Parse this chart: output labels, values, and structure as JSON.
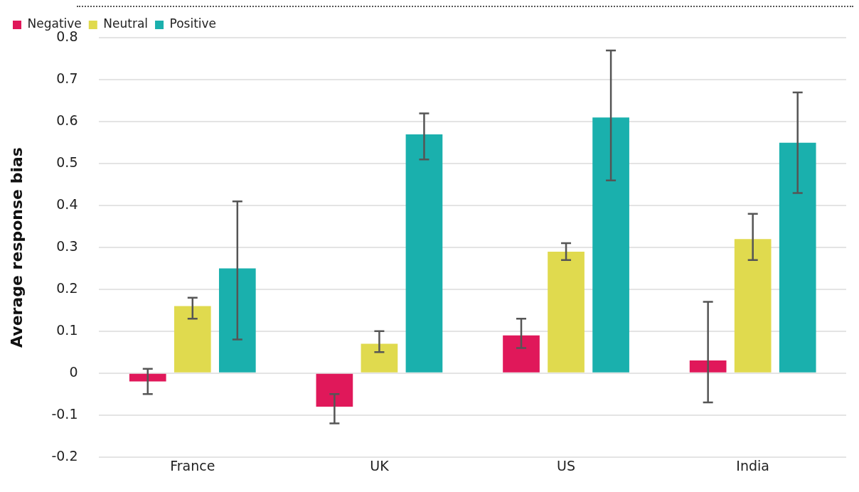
{
  "chart_data": {
    "type": "bar",
    "ylabel": "Average response bias",
    "categories": [
      "France",
      "UK",
      "US",
      "India"
    ],
    "series": [
      {
        "name": "Negative",
        "color": "#e0185a",
        "values": [
          -0.02,
          -0.08,
          0.09,
          0.03
        ],
        "errors": [
          [
            -0.05,
            0.01
          ],
          [
            -0.12,
            -0.05
          ],
          [
            0.06,
            0.13
          ],
          [
            -0.07,
            0.17
          ]
        ]
      },
      {
        "name": "Neutral",
        "color": "#e0da4e",
        "values": [
          0.16,
          0.07,
          0.29,
          0.32
        ],
        "errors": [
          [
            0.13,
            0.18
          ],
          [
            0.05,
            0.1
          ],
          [
            0.27,
            0.31
          ],
          [
            0.27,
            0.38
          ]
        ]
      },
      {
        "name": "Positive",
        "color": "#1ab0ad",
        "values": [
          0.25,
          0.57,
          0.61,
          0.55
        ],
        "errors": [
          [
            0.08,
            0.41
          ],
          [
            0.51,
            0.62
          ],
          [
            0.46,
            0.77
          ],
          [
            0.43,
            0.67
          ]
        ]
      }
    ],
    "ylim": [
      -0.2,
      0.8
    ],
    "yticks": [
      -0.2,
      -0.1,
      0,
      0.1,
      0.2,
      0.3,
      0.4,
      0.5,
      0.6,
      0.7,
      0.8
    ],
    "grid": "y",
    "legend": "top left"
  }
}
